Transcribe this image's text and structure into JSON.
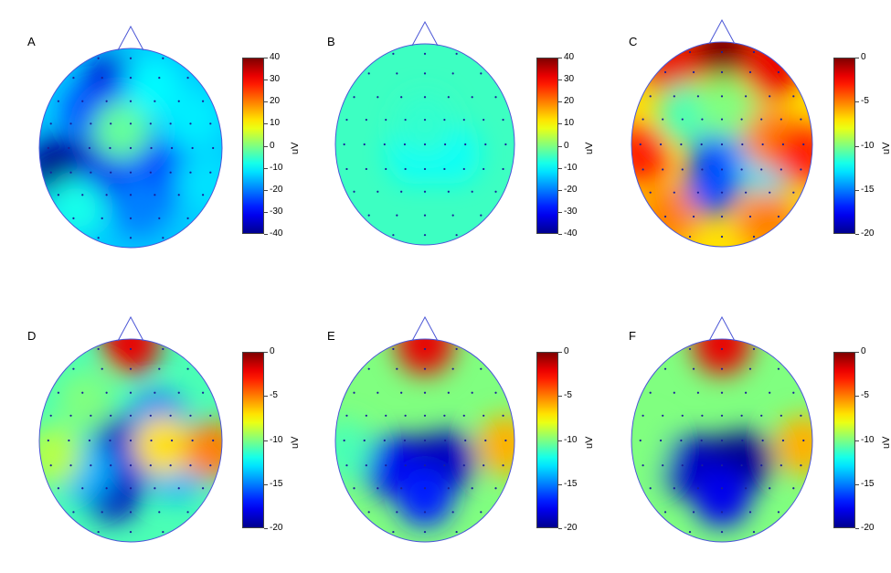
{
  "chart_data": [
    {
      "type": "heatmap",
      "panel": "A",
      "colorbar": {
        "label": "uV",
        "min": -40,
        "max": 40,
        "ticks": [
          40,
          30,
          20,
          10,
          0,
          -10,
          -20,
          -30,
          -40
        ]
      },
      "blobs": [
        {
          "x": -0.82,
          "y": 0.2,
          "v": -40
        },
        {
          "x": -0.55,
          "y": 0.24,
          "v": -40
        },
        {
          "x": -0.25,
          "y": 0.22,
          "v": -32
        },
        {
          "x": -0.2,
          "y": -0.62,
          "v": -36
        },
        {
          "x": -0.05,
          "y": -0.5,
          "v": -30
        },
        {
          "x": -0.4,
          "y": -0.35,
          "v": -26
        },
        {
          "x": 0.05,
          "y": 0.05,
          "v": -24
        },
        {
          "x": 0.45,
          "y": 0.3,
          "v": -25
        },
        {
          "x": 0.1,
          "y": 0.6,
          "v": -20
        },
        {
          "x": -0.6,
          "y": 0.6,
          "v": -8
        },
        {
          "x": -0.1,
          "y": -0.18,
          "v": -2
        },
        {
          "x": 0.25,
          "y": -0.62,
          "v": -10
        },
        {
          "x": 0.7,
          "y": -0.3,
          "v": -11
        },
        {
          "x": 0.8,
          "y": 0.35,
          "v": -12
        }
      ],
      "base_value": -14
    },
    {
      "type": "heatmap",
      "panel": "B",
      "colorbar": {
        "label": "uV",
        "min": -40,
        "max": 40,
        "ticks": [
          40,
          30,
          20,
          10,
          0,
          -10,
          -20,
          -30,
          -40
        ]
      },
      "blobs": [
        {
          "x": -0.1,
          "y": 0.1,
          "v": -9
        },
        {
          "x": 0.3,
          "y": 0.1,
          "v": -9
        },
        {
          "x": 0.0,
          "y": -0.2,
          "v": -6
        }
      ],
      "base_value": -5
    },
    {
      "type": "heatmap",
      "panel": "C",
      "colorbar": {
        "label": "uV",
        "min": -20,
        "max": 0,
        "ticks": [
          0,
          -5,
          -10,
          -15,
          -20
        ]
      },
      "blobs": [
        {
          "x": 0.0,
          "y": -0.95,
          "v": 0
        },
        {
          "x": -0.55,
          "y": -0.75,
          "v": -2
        },
        {
          "x": 0.55,
          "y": -0.75,
          "v": -2
        },
        {
          "x": -0.05,
          "y": 0.02,
          "v": -17
        },
        {
          "x": -0.1,
          "y": 0.4,
          "v": -16
        },
        {
          "x": 0.3,
          "y": -0.1,
          "v": -15
        },
        {
          "x": 0.5,
          "y": 0.2,
          "v": -13
        },
        {
          "x": -0.4,
          "y": -0.3,
          "v": -11
        },
        {
          "x": 0.05,
          "y": -0.35,
          "v": -10
        },
        {
          "x": 0.55,
          "y": -0.05,
          "v": -5
        },
        {
          "x": -0.9,
          "y": 0.1,
          "v": -3
        },
        {
          "x": 0.9,
          "y": 0.1,
          "v": -3
        },
        {
          "x": -0.6,
          "y": 0.7,
          "v": -5
        },
        {
          "x": 0.5,
          "y": 0.75,
          "v": -5
        }
      ],
      "base_value": -7
    },
    {
      "type": "heatmap",
      "panel": "D",
      "colorbar": {
        "label": "uV",
        "min": -20,
        "max": 0,
        "ticks": [
          0,
          -5,
          -10,
          -15,
          -20
        ]
      },
      "blobs": [
        {
          "x": 0.0,
          "y": -0.95,
          "v": -2
        },
        {
          "x": -0.1,
          "y": 0.05,
          "v": -19
        },
        {
          "x": -0.2,
          "y": 0.5,
          "v": -19
        },
        {
          "x": 0.2,
          "y": 0.15,
          "v": -18
        },
        {
          "x": 0.3,
          "y": -0.2,
          "v": -15
        },
        {
          "x": -0.5,
          "y": 0.3,
          "v": -14
        },
        {
          "x": 0.5,
          "y": 0.3,
          "v": -14
        },
        {
          "x": 0.35,
          "y": 0.05,
          "v": -7
        },
        {
          "x": -0.5,
          "y": -0.4,
          "v": -10
        },
        {
          "x": 0.9,
          "y": 0.1,
          "v": -5
        },
        {
          "x": -0.85,
          "y": 0.15,
          "v": -9
        }
      ],
      "base_value": -11
    },
    {
      "type": "heatmap",
      "panel": "E",
      "colorbar": {
        "label": "uV",
        "min": -20,
        "max": 0,
        "ticks": [
          0,
          -5,
          -10,
          -15,
          -20
        ]
      },
      "blobs": [
        {
          "x": 0.0,
          "y": -0.95,
          "v": -2
        },
        {
          "x": -0.1,
          "y": 0.25,
          "v": -20
        },
        {
          "x": 0.25,
          "y": 0.2,
          "v": -19
        },
        {
          "x": -0.4,
          "y": 0.25,
          "v": -18
        },
        {
          "x": 0.0,
          "y": 0.55,
          "v": -17
        },
        {
          "x": 0.9,
          "y": 0.05,
          "v": -6
        },
        {
          "x": -0.9,
          "y": 0.1,
          "v": -11
        }
      ],
      "base_value": -10
    },
    {
      "type": "heatmap",
      "panel": "F",
      "colorbar": {
        "label": "uV",
        "min": -20,
        "max": 0,
        "ticks": [
          0,
          -5,
          -10,
          -15,
          -20
        ]
      },
      "blobs": [
        {
          "x": 0.0,
          "y": -0.95,
          "v": -2
        },
        {
          "x": -0.1,
          "y": 0.25,
          "v": -20
        },
        {
          "x": 0.25,
          "y": 0.2,
          "v": -20
        },
        {
          "x": -0.4,
          "y": 0.25,
          "v": -19
        },
        {
          "x": 0.0,
          "y": 0.55,
          "v": -18
        },
        {
          "x": 0.9,
          "y": 0.05,
          "v": -6
        },
        {
          "x": -0.9,
          "y": 0.1,
          "v": -10
        }
      ],
      "base_value": -10
    }
  ],
  "colors": {
    "outline": "#4a55d6",
    "electrode": "#1a1f99",
    "colormap": [
      "#00008f",
      "#0000ff",
      "#00ffff",
      "#ffff00",
      "#ff0000",
      "#800000"
    ]
  }
}
